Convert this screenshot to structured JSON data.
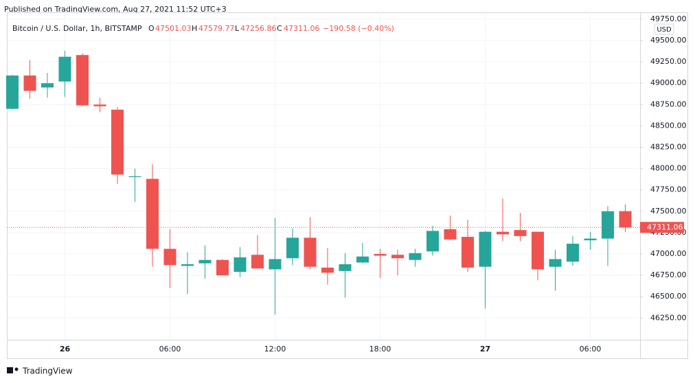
{
  "published": "Published on TradingView.com, Aug 27, 2021 11:52 UTC+3",
  "brand": "TradingView",
  "chart_data": {
    "type": "candlestick",
    "title": "Bitcoin / U.S. Dollar, 1h, BITSTAMP",
    "legend_labels": {
      "open": "O",
      "high": "H",
      "low": "L",
      "close": "C"
    },
    "change": "−190.58 (−0.40%)",
    "currency": "USD",
    "up_color": "#26a69a",
    "down_color": "#ef5350",
    "grid": true,
    "categories": [
      null,
      null,
      null,
      "26",
      null,
      null,
      null,
      null,
      null,
      "06:00",
      null,
      null,
      null,
      null,
      null,
      "12:00",
      null,
      null,
      null,
      null,
      null,
      "18:00",
      null,
      null,
      null,
      null,
      null,
      "27",
      null,
      null,
      null,
      null,
      null,
      "06:00",
      null,
      null
    ],
    "open": [
      48700,
      49090,
      48950,
      49020,
      49330,
      48750,
      48690,
      47900,
      47880,
      47060,
      46860,
      46890,
      46930,
      46790,
      46990,
      46820,
      46950,
      47190,
      46840,
      46800,
      46900,
      47000,
      46990,
      46930,
      47030,
      47290,
      47200,
      46850,
      47260,
      47280,
      47260,
      46850,
      46910,
      47160,
      47180,
      47501.03
    ],
    "high": [
      49100,
      49270,
      49120,
      49380,
      49350,
      48830,
      48720,
      48000,
      48050,
      47290,
      47020,
      47100,
      46940,
      47080,
      47220,
      47420,
      47300,
      47430,
      47070,
      47010,
      47130,
      47060,
      47050,
      47060,
      47330,
      47450,
      47400,
      47270,
      47650,
      47480,
      47260,
      47050,
      47210,
      47260,
      47560,
      47579.77
    ],
    "low": [
      48690,
      48820,
      48830,
      48840,
      48730,
      48660,
      47820,
      47610,
      46850,
      46600,
      46530,
      46710,
      46750,
      46730,
      46830,
      46290,
      46870,
      46820,
      46640,
      46490,
      46890,
      46720,
      46750,
      46850,
      46980,
      47160,
      46790,
      46360,
      47150,
      47150,
      46690,
      46570,
      46860,
      47050,
      46860,
      47256.86
    ],
    "close": [
      49090,
      48910,
      49000,
      49310,
      48740,
      48730,
      47930,
      47910,
      47060,
      46870,
      46880,
      46930,
      46750,
      46960,
      46830,
      46940,
      47190,
      46850,
      46780,
      46880,
      46970,
      46980,
      46950,
      47010,
      47270,
      47170,
      46840,
      47260,
      47230,
      47210,
      46820,
      46940,
      47120,
      47180,
      47500,
      47311.06
    ],
    "ylim": [
      45995,
      49830
    ],
    "yticks": [
      {
        "value": 46250,
        "label": "46250.00"
      },
      {
        "value": 46500,
        "label": "46500.00"
      },
      {
        "value": 46750,
        "label": "46750.00"
      },
      {
        "value": 47000,
        "label": "47000.00"
      },
      {
        "value": 47250,
        "label": "47250.00"
      },
      {
        "value": 47500,
        "label": "47500.00"
      },
      {
        "value": 47750,
        "label": "47750.00"
      },
      {
        "value": 48000,
        "label": "48000.00"
      },
      {
        "value": 48250,
        "label": "48250.00"
      },
      {
        "value": 48500,
        "label": "48500.00"
      },
      {
        "value": 48750,
        "label": "48750.00"
      },
      {
        "value": 49000,
        "label": "49000.00"
      },
      {
        "value": 49250,
        "label": "49250.00"
      },
      {
        "value": 49500,
        "label": "49500.00"
      },
      {
        "value": 49750,
        "label": "49750.00"
      }
    ]
  }
}
